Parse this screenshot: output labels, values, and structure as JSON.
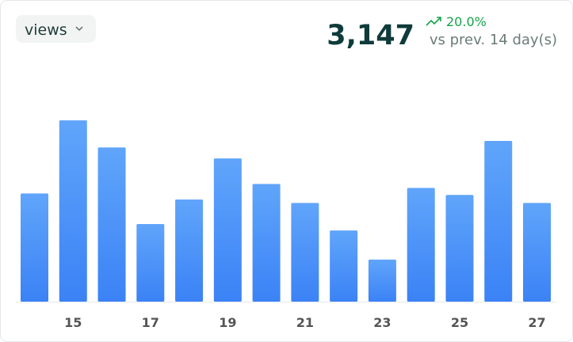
{
  "header": {
    "metric_selector": "views",
    "total": "3,147",
    "change": "20.0%",
    "comparison": "vs prev. 14 day(s)"
  },
  "chart_data": {
    "type": "bar",
    "categories": [
      null,
      "15",
      null,
      "17",
      null,
      "19",
      null,
      "21",
      null,
      "23",
      null,
      "25",
      null,
      "27"
    ],
    "values": [
      216,
      362,
      308,
      155,
      204,
      286,
      235,
      197,
      142,
      84,
      227,
      213,
      321,
      197
    ],
    "color": "#3b82f6",
    "ylim": [
      0,
      400
    ]
  }
}
